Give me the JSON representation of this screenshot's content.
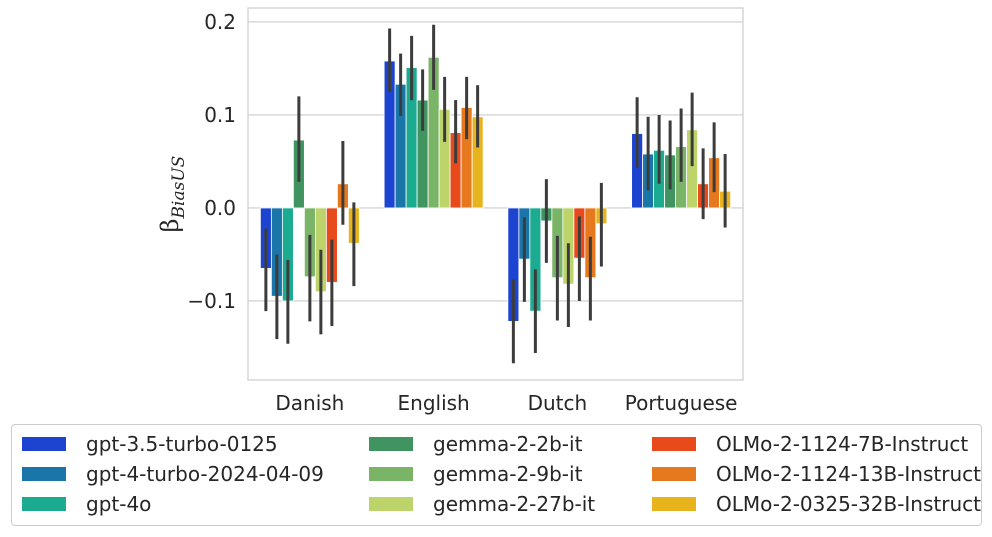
{
  "chart_data": {
    "type": "bar",
    "categories": [
      "Danish",
      "English",
      "Dutch",
      "Portuguese"
    ],
    "ylabel": "β",
    "ylabel_subscript": "BiasUS",
    "ylim": [
      -0.185,
      0.215
    ],
    "yticks": [
      -0.1,
      0.0,
      0.1,
      0.2
    ],
    "ytick_labels": [
      "−0.1",
      "0.0",
      "0.1",
      "0.2"
    ],
    "grid": "horizontal",
    "legend_position": "bottom",
    "series": [
      {
        "name": "gpt-3.5-turbo-0125",
        "color": "#1c44d1",
        "values": [
          -0.065,
          0.158,
          -0.122,
          0.08
        ],
        "ci": [
          [
            -0.111,
            -0.022
          ],
          [
            0.125,
            0.193
          ],
          [
            -0.167,
            -0.077
          ],
          [
            0.043,
            0.119
          ]
        ]
      },
      {
        "name": "gpt-4-turbo-2024-04-09",
        "color": "#1a75a8",
        "values": [
          -0.095,
          0.133,
          -0.055,
          0.058
        ],
        "ci": [
          [
            -0.141,
            -0.05
          ],
          [
            0.099,
            0.166
          ],
          [
            -0.101,
            -0.01
          ],
          [
            0.019,
            0.098
          ]
        ]
      },
      {
        "name": "gpt-4o",
        "color": "#1aab91",
        "values": [
          -0.1,
          0.151,
          -0.111,
          0.062
        ],
        "ci": [
          [
            -0.146,
            -0.056
          ],
          [
            0.116,
            0.185
          ],
          [
            -0.156,
            -0.066
          ],
          [
            0.026,
            0.1
          ]
        ]
      },
      {
        "name": "gemma-2-2b-it",
        "color": "#409460",
        "values": [
          0.073,
          0.116,
          -0.014,
          0.057
        ],
        "ci": [
          [
            0.028,
            0.12
          ],
          [
            0.083,
            0.149
          ],
          [
            -0.059,
            0.031
          ],
          [
            0.02,
            0.094
          ]
        ]
      },
      {
        "name": "gemma-2-9b-it",
        "color": "#7ab467",
        "values": [
          -0.074,
          0.162,
          -0.075,
          0.066
        ],
        "ci": [
          [
            -0.122,
            -0.029
          ],
          [
            0.127,
            0.197
          ],
          [
            -0.121,
            -0.03
          ],
          [
            0.028,
            0.107
          ]
        ]
      },
      {
        "name": "gemma-2-27b-it",
        "color": "#bdd46b",
        "values": [
          -0.09,
          0.106,
          -0.082,
          0.084
        ],
        "ci": [
          [
            -0.136,
            -0.045
          ],
          [
            0.071,
            0.141
          ],
          [
            -0.128,
            -0.038
          ],
          [
            0.045,
            0.124
          ]
        ]
      },
      {
        "name": "OLMo-2-1124-7B-Instruct",
        "color": "#e84a1c",
        "values": [
          -0.08,
          0.081,
          -0.054,
          0.026
        ],
        "ci": [
          [
            -0.127,
            -0.034
          ],
          [
            0.048,
            0.116
          ],
          [
            -0.1,
            -0.009
          ],
          [
            -0.012,
            0.064
          ]
        ]
      },
      {
        "name": "OLMo-2-1124-13B-Instruct",
        "color": "#e6791e",
        "values": [
          0.026,
          0.108,
          -0.075,
          0.054
        ],
        "ci": [
          [
            -0.018,
            0.072
          ],
          [
            0.074,
            0.141
          ],
          [
            -0.121,
            -0.031
          ],
          [
            0.017,
            0.092
          ]
        ]
      },
      {
        "name": "OLMo-2-0325-32B-Instruct",
        "color": "#e8b41e",
        "values": [
          -0.038,
          0.098,
          -0.017,
          0.018
        ],
        "ci": [
          [
            -0.084,
            0.006
          ],
          [
            0.065,
            0.132
          ],
          [
            -0.063,
            0.027
          ],
          [
            -0.021,
            0.058
          ]
        ]
      }
    ]
  }
}
